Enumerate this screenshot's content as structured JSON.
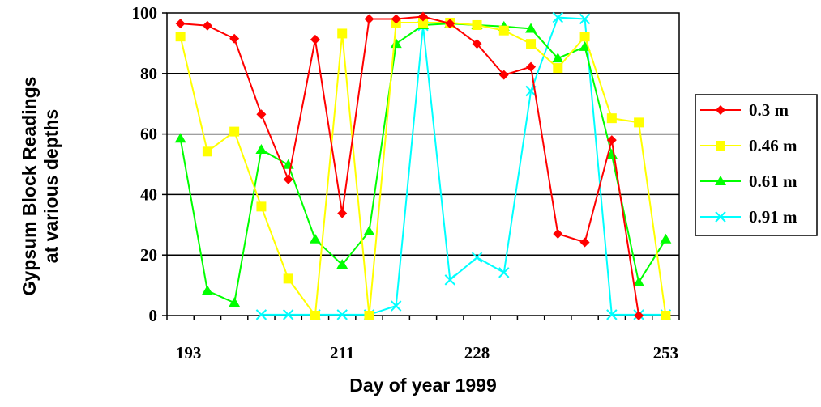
{
  "chart_data": {
    "type": "line",
    "title": "",
    "xlabel": "Day of year 1999",
    "ylabel": [
      "Gypsum Block Readings",
      "at various depths"
    ],
    "x_tick_labels": [
      "193",
      "211",
      "228",
      "253"
    ],
    "y_ticks": [
      0,
      20,
      40,
      60,
      80,
      100
    ],
    "ylim": [
      0,
      100
    ],
    "grid": "horizontal",
    "legend_position": "right",
    "series": [
      {
        "name": "0.3 m",
        "color": "#ff0000",
        "marker": "diamond",
        "values": [
          96.5,
          95.8,
          91.5,
          66.5,
          45,
          91.2,
          33.8,
          98,
          98,
          98.8,
          96.5,
          89.8,
          79.5,
          82.2,
          27,
          24.2,
          58,
          0,
          null
        ]
      },
      {
        "name": "0.46 m",
        "color": "#ffff00",
        "marker": "square",
        "values": [
          92.2,
          54.2,
          60.8,
          36,
          12.2,
          0,
          93.2,
          0,
          96.8,
          96.8,
          96.8,
          96,
          94.2,
          89.8,
          81.8,
          92.2,
          65.2,
          63.8,
          0
        ]
      },
      {
        "name": "0.61 m",
        "color": "#00ff00",
        "marker": "triangle",
        "values": [
          58.5,
          8.2,
          4.2,
          54.8,
          49.8,
          25.2,
          16.8,
          27.8,
          89.8,
          96,
          96.5,
          96,
          95.5,
          94.8,
          85,
          88.8,
          53.2,
          11,
          25.2
        ]
      },
      {
        "name": "0.91 m",
        "color": "#00ffff",
        "marker": "x",
        "values": [
          null,
          null,
          null,
          0.3,
          0.3,
          0.3,
          0.3,
          0.3,
          3.2,
          95.8,
          11.8,
          19.2,
          14.2,
          74.2,
          98.5,
          98,
          0.3,
          0.3,
          0.3
        ]
      }
    ]
  }
}
